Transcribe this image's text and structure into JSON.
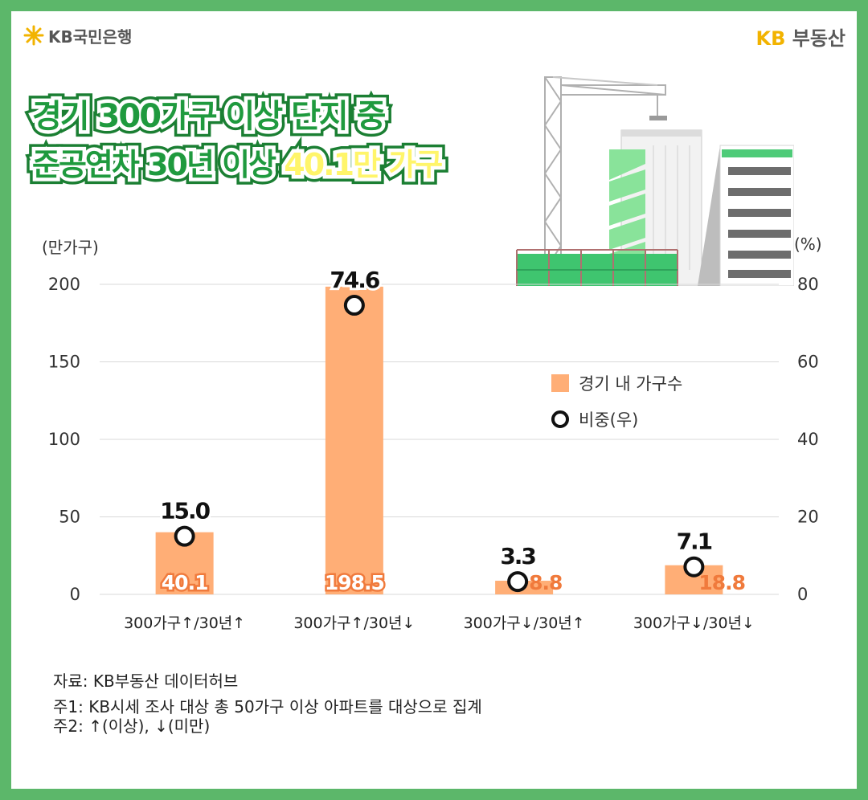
{
  "header": {
    "bank_logo_text": "KB국민은행",
    "brand_logo_kb": "KB",
    "brand_logo_text": "부동산",
    "title_line1": "경기 300가구 이상 단지 중",
    "title_line2_prefix": "준공연차 30년 이상 ",
    "title_line2_highlight": "40.1만 가구"
  },
  "chart_data": {
    "type": "bar",
    "categories": [
      "300가구↑/30년↑",
      "300가구↑/30년↓",
      "300가구↓/30년↑",
      "300가구↓/30년↓"
    ],
    "series": [
      {
        "name": "경기 내 가구수",
        "type": "bar",
        "axis": "left",
        "values": [
          40.1,
          198.5,
          8.8,
          18.8
        ],
        "labels": [
          "40.1",
          "198.5",
          "8.8",
          "18.8"
        ],
        "color": "#ffae76"
      },
      {
        "name": "비중(우)",
        "type": "scatter",
        "axis": "right",
        "values": [
          15.0,
          74.6,
          3.3,
          7.1
        ],
        "labels": [
          "15.0",
          "74.6",
          "3.3",
          "7.1"
        ],
        "color": "#111111"
      }
    ],
    "y_left": {
      "unit": "(만가구)",
      "ylim": [
        0,
        200
      ],
      "ticks": [
        "0",
        "50",
        "100",
        "150",
        "200"
      ]
    },
    "y_right": {
      "unit": "(%)",
      "ylim": [
        0,
        80
      ],
      "ticks": [
        "0",
        "20",
        "40",
        "60",
        "80"
      ]
    },
    "grid": true,
    "legend": "center-right",
    "label_color": "#f07a3c"
  },
  "footer": {
    "source": "자료: KB부동산 데이터허브",
    "note1": "주1: KB시세 조사 대상 총 50가구 이상 아파트를 대상으로 집계",
    "note2": "주2: ↑(이상), ↓(미만)"
  }
}
